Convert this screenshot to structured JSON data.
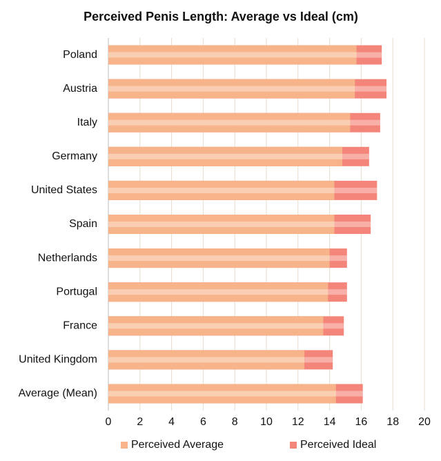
{
  "chart_data": {
    "type": "bar",
    "orientation": "horizontal",
    "title": "Perceived Penis Length: Average vs Ideal (cm)",
    "categories": [
      "Poland",
      "Austria",
      "Italy",
      "Germany",
      "United States",
      "Spain",
      "Netherlands",
      "Portugal",
      "France",
      "United Kingdom",
      "Average (Mean)"
    ],
    "series": [
      {
        "name": "Perceived Average",
        "color": "#f7b48a",
        "values": [
          15.7,
          15.6,
          15.3,
          14.8,
          14.3,
          14.3,
          14.0,
          13.9,
          13.6,
          12.4,
          14.4
        ]
      },
      {
        "name": "Perceived Ideal",
        "color": "#f4857a",
        "values": [
          17.3,
          17.6,
          17.2,
          16.5,
          17.0,
          16.6,
          15.1,
          15.1,
          14.9,
          14.2,
          16.1
        ]
      }
    ],
    "xlim": [
      0,
      20
    ],
    "xticks": [
      0,
      2,
      4,
      6,
      8,
      10,
      12,
      14,
      16,
      18,
      20
    ],
    "grid": true,
    "legend": "bottom"
  }
}
